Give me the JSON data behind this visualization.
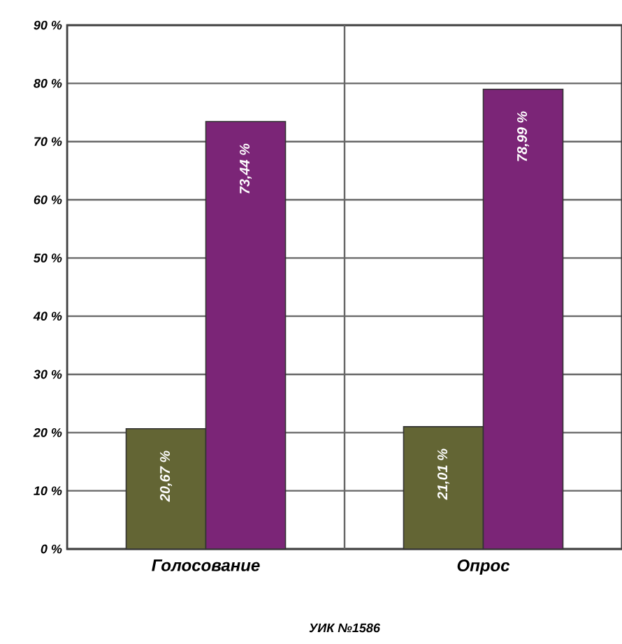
{
  "chart_data": {
    "type": "bar",
    "xlabel": "УИК №1586",
    "categories": [
      "Голосование",
      "Опрос"
    ],
    "series": [
      {
        "color": "#636534",
        "values": [
          20.67,
          21.01
        ],
        "value_labels": [
          "20,67 %",
          "21,01 %"
        ]
      },
      {
        "color": "#7b2577",
        "values": [
          73.44,
          78.99
        ],
        "value_labels": [
          "73,44 %",
          "78,99 %"
        ]
      }
    ],
    "ylim": [
      0,
      90
    ],
    "yticks": [
      {
        "value": 0,
        "label": "0 %"
      },
      {
        "value": 10,
        "label": "10 %"
      },
      {
        "value": 20,
        "label": "20 %"
      },
      {
        "value": 30,
        "label": "30 %"
      },
      {
        "value": 40,
        "label": "40 %"
      },
      {
        "value": 50,
        "label": "50 %"
      },
      {
        "value": 60,
        "label": "60 %"
      },
      {
        "value": 70,
        "label": "70 %"
      },
      {
        "value": 80,
        "label": "80 %"
      },
      {
        "value": 90,
        "label": "90 %"
      }
    ],
    "grid": "y"
  }
}
